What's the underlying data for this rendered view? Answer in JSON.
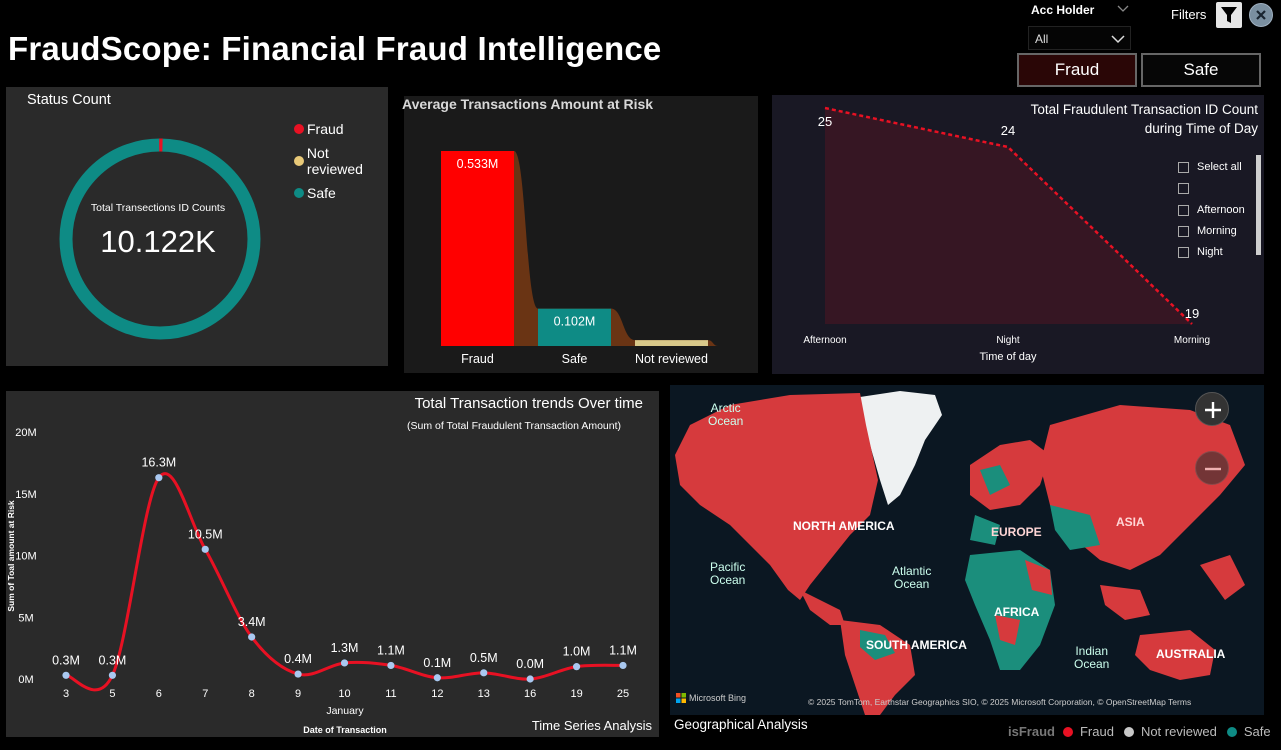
{
  "title": "FraudScope: Financial Fraud Intelligence",
  "filters": {
    "acc_holder_label": "Acc Holder",
    "acc_holder_value": "All",
    "filters_label": "Filters",
    "fraud_button": "Fraud",
    "safe_button": "Safe"
  },
  "status_panel": {
    "title": "Status Count",
    "legend": [
      {
        "label": "Fraud",
        "color": "#e81123"
      },
      {
        "label": "Not reviewed",
        "color": "#e8c978"
      },
      {
        "label": "Safe",
        "color": "#0e8b85"
      }
    ],
    "center_caption": "Total Transections ID Counts",
    "center_value": "10.122K"
  },
  "avg_panel": {
    "title": "Average Transactions Amount at Risk",
    "chart_data": {
      "type": "bar",
      "categories": [
        "Fraud",
        "Safe",
        "Not reviewed"
      ],
      "values": [
        0.533,
        0.102,
        0.016
      ],
      "data_labels": [
        "0.533M",
        "0.102M",
        ""
      ],
      "colors": [
        "#ff0000",
        "#0e8b85",
        "#d9c98a"
      ],
      "unit": "M"
    }
  },
  "time_panel": {
    "title_line1": "Total Fraudulent Transaction ID Count",
    "title_line2": "during Time of Day",
    "chart_data": {
      "type": "area",
      "categories": [
        "Afternoon",
        "Night",
        "Morning"
      ],
      "values": [
        25,
        24,
        19
      ],
      "xlabel": "Time of day",
      "ylabel": ""
    },
    "slicer": [
      "Select all",
      "",
      "Afternoon",
      "Morning",
      "Night"
    ]
  },
  "trend_panel": {
    "title": "Total Transaction trends Over time",
    "subtitle": "(Sum of Total Fraudulent Transaction  Amount)",
    "footer": "Time Series Analysis",
    "chart_data": {
      "type": "line",
      "x": [
        "3",
        "5",
        "6",
        "7",
        "8",
        "9",
        "10",
        "11",
        "12",
        "13",
        "16",
        "19",
        "25"
      ],
      "values": [
        0.3,
        0.3,
        16.3,
        10.5,
        3.4,
        0.4,
        1.3,
        1.1,
        0.1,
        0.5,
        0.0,
        1.0,
        1.1
      ],
      "data_labels": [
        "0.3M",
        "0.3M",
        "16.3M",
        "10.5M",
        "3.4M",
        "0.4M",
        "1.3M",
        "1.1M",
        "0.1M",
        "0.5M",
        "0.0M",
        "1.0M",
        "1.1M"
      ],
      "y_ticks": [
        "0M",
        "5M",
        "10M",
        "15M",
        "20M"
      ],
      "ylim": [
        0,
        20
      ],
      "xlabel_month": "January",
      "xlabel": "Date of Transaction",
      "ylabel": "Sum of Toal amount at Risk"
    }
  },
  "map_panel": {
    "title": "Geographical Analysis",
    "oceans": {
      "arctic": "Arctic\nOcean",
      "pacific": "Pacific\nOcean",
      "atlantic": "Atlantic\nOcean",
      "indian": "Indian\nOcean"
    },
    "continents": {
      "north_america": "NORTH AMERICA",
      "south_america": "SOUTH AMERICA",
      "europe": "EUROPE",
      "asia": "ASIA",
      "africa": "AFRICA",
      "australia": "AUSTRALIA"
    },
    "bing": "Microsoft Bing",
    "attribution": "© 2025 TomTom, Earthstar Geographics SIO, © 2025 Microsoft Corporation, © OpenStreetMap  Terms",
    "legend_title": "isFraud",
    "legend": [
      {
        "label": "Fraud",
        "color": "#e81123"
      },
      {
        "label": "Not reviewed",
        "color": "#c8c8c8"
      },
      {
        "label": "Safe",
        "color": "#0e8b85"
      }
    ]
  }
}
